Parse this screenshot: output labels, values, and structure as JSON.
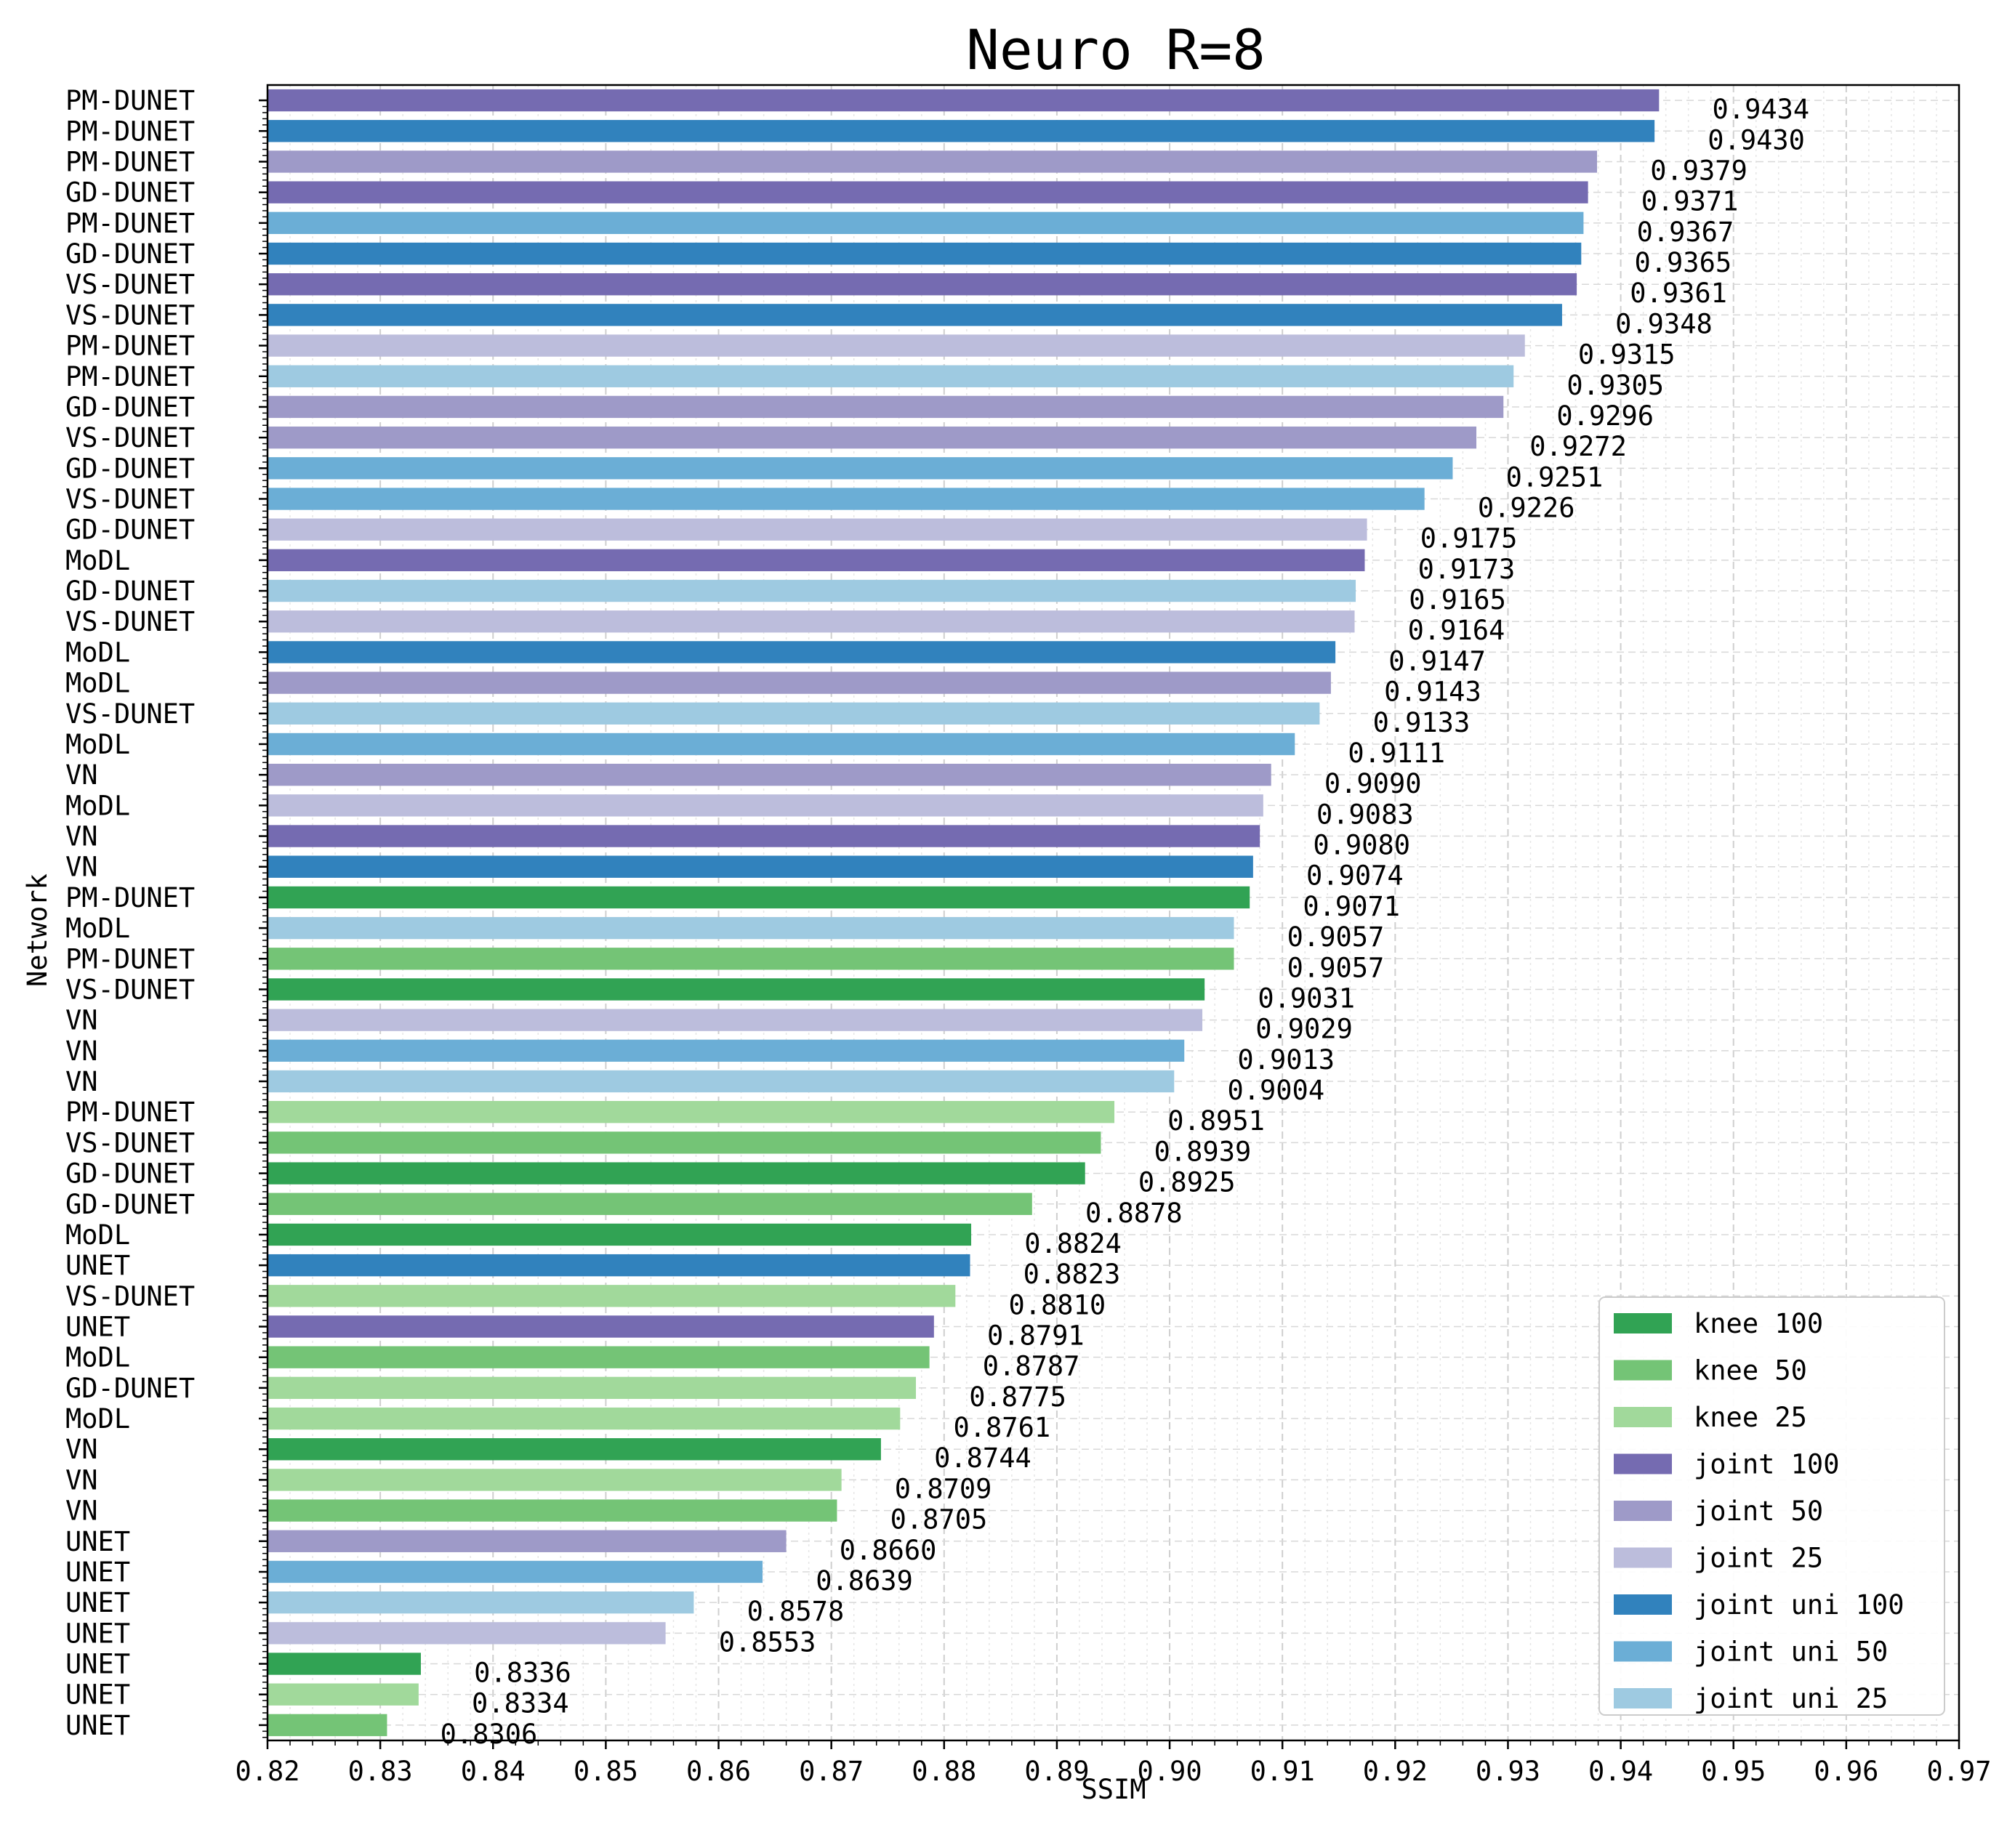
{
  "chart_data": {
    "type": "bar",
    "orientation": "horizontal",
    "title": "Neuro R=8",
    "xlabel": "SSIM",
    "ylabel": "Network",
    "xlim": [
      0.82,
      0.97
    ],
    "xticks": [
      "0.82",
      "0.83",
      "0.84",
      "0.85",
      "0.86",
      "0.87",
      "0.88",
      "0.89",
      "0.90",
      "0.91",
      "0.92",
      "0.93",
      "0.94",
      "0.95",
      "0.96",
      "0.97"
    ],
    "grid": true,
    "legend_position": "bottom-right",
    "groups": [
      {
        "name": "knee 100",
        "color": "#31a354"
      },
      {
        "name": "knee 50",
        "color": "#74c476"
      },
      {
        "name": "knee 25",
        "color": "#a1d99b"
      },
      {
        "name": "joint 100",
        "color": "#756bb1"
      },
      {
        "name": "joint 50",
        "color": "#9e9ac8"
      },
      {
        "name": "joint 25",
        "color": "#bcbddc"
      },
      {
        "name": "joint uni 100",
        "color": "#3182bd"
      },
      {
        "name": "joint uni 50",
        "color": "#6baed6"
      },
      {
        "name": "joint uni 25",
        "color": "#9ecae1"
      }
    ],
    "bars": [
      {
        "label": "PM-DUNET",
        "value": 0.9434,
        "value_label": "0.9434",
        "group": "joint 100"
      },
      {
        "label": "PM-DUNET",
        "value": 0.943,
        "value_label": "0.9430",
        "group": "joint uni 100"
      },
      {
        "label": "PM-DUNET",
        "value": 0.9379,
        "value_label": "0.9379",
        "group": "joint 50"
      },
      {
        "label": "GD-DUNET",
        "value": 0.9371,
        "value_label": "0.9371",
        "group": "joint 100"
      },
      {
        "label": "PM-DUNET",
        "value": 0.9367,
        "value_label": "0.9367",
        "group": "joint uni 50"
      },
      {
        "label": "GD-DUNET",
        "value": 0.9365,
        "value_label": "0.9365",
        "group": "joint uni 100"
      },
      {
        "label": "VS-DUNET",
        "value": 0.9361,
        "value_label": "0.9361",
        "group": "joint 100"
      },
      {
        "label": "VS-DUNET",
        "value": 0.9348,
        "value_label": "0.9348",
        "group": "joint uni 100"
      },
      {
        "label": "PM-DUNET",
        "value": 0.9315,
        "value_label": "0.9315",
        "group": "joint 25"
      },
      {
        "label": "PM-DUNET",
        "value": 0.9305,
        "value_label": "0.9305",
        "group": "joint uni 25"
      },
      {
        "label": "GD-DUNET",
        "value": 0.9296,
        "value_label": "0.9296",
        "group": "joint 50"
      },
      {
        "label": "VS-DUNET",
        "value": 0.9272,
        "value_label": "0.9272",
        "group": "joint 50"
      },
      {
        "label": "GD-DUNET",
        "value": 0.9251,
        "value_label": "0.9251",
        "group": "joint uni 50"
      },
      {
        "label": "VS-DUNET",
        "value": 0.9226,
        "value_label": "0.9226",
        "group": "joint uni 50"
      },
      {
        "label": "GD-DUNET",
        "value": 0.9175,
        "value_label": "0.9175",
        "group": "joint 25"
      },
      {
        "label": "MoDL",
        "value": 0.9173,
        "value_label": "0.9173",
        "group": "joint 100"
      },
      {
        "label": "GD-DUNET",
        "value": 0.9165,
        "value_label": "0.9165",
        "group": "joint uni 25"
      },
      {
        "label": "VS-DUNET",
        "value": 0.9164,
        "value_label": "0.9164",
        "group": "joint 25"
      },
      {
        "label": "MoDL",
        "value": 0.9147,
        "value_label": "0.9147",
        "group": "joint uni 100"
      },
      {
        "label": "MoDL",
        "value": 0.9143,
        "value_label": "0.9143",
        "group": "joint 50"
      },
      {
        "label": "VS-DUNET",
        "value": 0.9133,
        "value_label": "0.9133",
        "group": "joint uni 25"
      },
      {
        "label": "MoDL",
        "value": 0.9111,
        "value_label": "0.9111",
        "group": "joint uni 50"
      },
      {
        "label": "VN",
        "value": 0.909,
        "value_label": "0.9090",
        "group": "joint 50"
      },
      {
        "label": "MoDL",
        "value": 0.9083,
        "value_label": "0.9083",
        "group": "joint 25"
      },
      {
        "label": "VN",
        "value": 0.908,
        "value_label": "0.9080",
        "group": "joint 100"
      },
      {
        "label": "VN",
        "value": 0.9074,
        "value_label": "0.9074",
        "group": "joint uni 100"
      },
      {
        "label": "PM-DUNET",
        "value": 0.9071,
        "value_label": "0.9071",
        "group": "knee 100"
      },
      {
        "label": "MoDL",
        "value": 0.9057,
        "value_label": "0.9057",
        "group": "joint uni 25"
      },
      {
        "label": "PM-DUNET",
        "value": 0.9057,
        "value_label": "0.9057",
        "group": "knee 50"
      },
      {
        "label": "VS-DUNET",
        "value": 0.9031,
        "value_label": "0.9031",
        "group": "knee 100"
      },
      {
        "label": "VN",
        "value": 0.9029,
        "value_label": "0.9029",
        "group": "joint 25"
      },
      {
        "label": "VN",
        "value": 0.9013,
        "value_label": "0.9013",
        "group": "joint uni 50"
      },
      {
        "label": "VN",
        "value": 0.9004,
        "value_label": "0.9004",
        "group": "joint uni 25"
      },
      {
        "label": "PM-DUNET",
        "value": 0.8951,
        "value_label": "0.8951",
        "group": "knee 25"
      },
      {
        "label": "VS-DUNET",
        "value": 0.8939,
        "value_label": "0.8939",
        "group": "knee 50"
      },
      {
        "label": "GD-DUNET",
        "value": 0.8925,
        "value_label": "0.8925",
        "group": "knee 100"
      },
      {
        "label": "GD-DUNET",
        "value": 0.8878,
        "value_label": "0.8878",
        "group": "knee 50"
      },
      {
        "label": "MoDL",
        "value": 0.8824,
        "value_label": "0.8824",
        "group": "knee 100"
      },
      {
        "label": "UNET",
        "value": 0.8823,
        "value_label": "0.8823",
        "group": "joint uni 100"
      },
      {
        "label": "VS-DUNET",
        "value": 0.881,
        "value_label": "0.8810",
        "group": "knee 25"
      },
      {
        "label": "UNET",
        "value": 0.8791,
        "value_label": "0.8791",
        "group": "joint 100"
      },
      {
        "label": "MoDL",
        "value": 0.8787,
        "value_label": "0.8787",
        "group": "knee 50"
      },
      {
        "label": "GD-DUNET",
        "value": 0.8775,
        "value_label": "0.8775",
        "group": "knee 25"
      },
      {
        "label": "MoDL",
        "value": 0.8761,
        "value_label": "0.8761",
        "group": "knee 25"
      },
      {
        "label": "VN",
        "value": 0.8744,
        "value_label": "0.8744",
        "group": "knee 100"
      },
      {
        "label": "VN",
        "value": 0.8709,
        "value_label": "0.8709",
        "group": "knee 25"
      },
      {
        "label": "VN",
        "value": 0.8705,
        "value_label": "0.8705",
        "group": "knee 50"
      },
      {
        "label": "UNET",
        "value": 0.866,
        "value_label": "0.8660",
        "group": "joint 50"
      },
      {
        "label": "UNET",
        "value": 0.8639,
        "value_label": "0.8639",
        "group": "joint uni 50"
      },
      {
        "label": "UNET",
        "value": 0.8578,
        "value_label": "0.8578",
        "group": "joint uni 25"
      },
      {
        "label": "UNET",
        "value": 0.8553,
        "value_label": "0.8553",
        "group": "joint 25"
      },
      {
        "label": "UNET",
        "value": 0.8336,
        "value_label": "0.8336",
        "group": "knee 100"
      },
      {
        "label": "UNET",
        "value": 0.8334,
        "value_label": "0.8334",
        "group": "knee 25"
      },
      {
        "label": "UNET",
        "value": 0.8306,
        "value_label": "0.8306",
        "group": "knee 50"
      }
    ]
  }
}
